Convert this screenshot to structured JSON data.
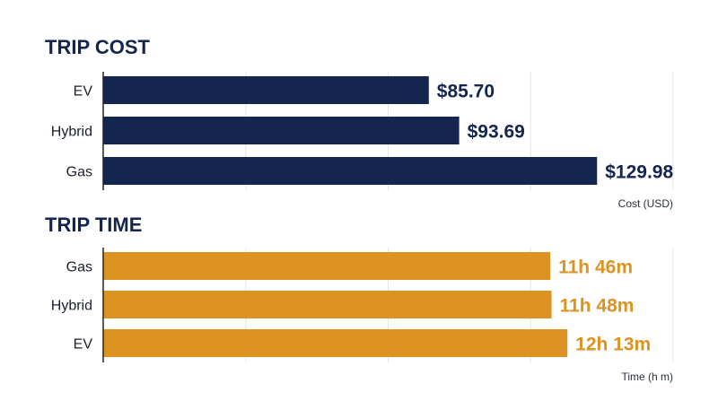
{
  "chart_data": [
    {
      "type": "bar",
      "orientation": "horizontal",
      "title": "TRIP COST",
      "xlabel": "Cost (USD)",
      "categories": [
        "EV",
        "Hybrid",
        "Gas"
      ],
      "values": [
        85.7,
        93.69,
        129.98
      ],
      "value_labels": [
        "$85.70",
        "$93.69",
        "$129.98"
      ],
      "xlim": [
        0,
        150
      ],
      "grid": true,
      "color": "#14254f"
    },
    {
      "type": "bar",
      "orientation": "horizontal",
      "title": "TRIP TIME",
      "xlabel": "Time (h m)",
      "categories": [
        "Gas",
        "Hybrid",
        "EV"
      ],
      "values": [
        706,
        708,
        733
      ],
      "value_labels": [
        "11h 46m",
        "11h 48m",
        "12h 13m"
      ],
      "xlim": [
        0,
        900
      ],
      "grid": true,
      "color": "#dc9322"
    }
  ]
}
